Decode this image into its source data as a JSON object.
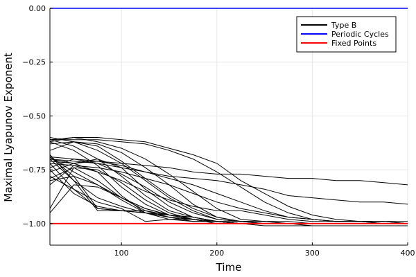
{
  "chart_data": {
    "type": "line",
    "title": "",
    "xlabel": "Time",
    "ylabel": "Maximal Lyapunov Exponent",
    "xlim": [
      25,
      400
    ],
    "ylim": [
      -1.1,
      0.0
    ],
    "x_ticks": [
      100,
      200,
      300,
      400
    ],
    "x_tick_labels": [
      "100",
      "200",
      "300",
      "400"
    ],
    "y_ticks": [
      0.0,
      -0.25,
      -0.5,
      -0.75,
      -1.0
    ],
    "y_tick_labels": [
      "0.00",
      "−0.25",
      "−0.50",
      "−0.75",
      "−1.00"
    ],
    "grid": true,
    "legend": {
      "position": "top-right",
      "entries": [
        {
          "label": "Type B",
          "color": "#000000"
        },
        {
          "label": "Periodic Cycles",
          "color": "#0000ff"
        },
        {
          "label": "Fixed Points",
          "color": "#ff0000"
        }
      ]
    },
    "x": [
      25,
      50,
      75,
      100,
      125,
      150,
      175,
      200,
      225,
      250,
      275,
      300,
      325,
      350,
      375,
      400
    ],
    "series": [
      {
        "name": "Type B",
        "color": "#000000",
        "trajectories": [
          [
            -0.61,
            -0.6,
            -0.6,
            -0.61,
            -0.62,
            -0.65,
            -0.68,
            -0.72,
            -0.8,
            -0.86,
            -0.92,
            -0.96,
            -0.98,
            -0.99,
            -0.99,
            -1.0
          ],
          [
            -0.61,
            -0.61,
            -0.61,
            -0.62,
            -0.63,
            -0.66,
            -0.7,
            -0.76,
            -0.83,
            -0.9,
            -0.95,
            -0.98,
            -0.99,
            -0.99,
            -1.0,
            -1.0
          ],
          [
            -0.62,
            -0.6,
            -0.62,
            -0.65,
            -0.7,
            -0.77,
            -0.85,
            -0.93,
            -0.98,
            -0.99,
            -0.99,
            -1.0,
            -1.0,
            -1.0,
            -1.0,
            -1.0
          ],
          [
            -0.6,
            -0.62,
            -0.63,
            -0.67,
            -0.74,
            -0.82,
            -0.91,
            -0.97,
            -0.99,
            -0.99,
            -1.0,
            -1.0,
            -1.0,
            -1.0,
            -1.0,
            -1.0
          ],
          [
            -0.63,
            -0.62,
            -0.66,
            -0.72,
            -0.8,
            -0.88,
            -0.94,
            -0.98,
            -0.99,
            -1.0,
            -1.0,
            -1.0,
            -1.0,
            -1.0,
            -1.0,
            -1.0
          ],
          [
            -0.66,
            -0.62,
            -0.64,
            -0.71,
            -0.79,
            -0.87,
            -0.93,
            -0.97,
            -0.99,
            -0.99,
            -1.0,
            -1.0,
            -1.0,
            -1.0,
            -1.0,
            -1.0
          ],
          [
            -0.61,
            -0.64,
            -0.7,
            -0.78,
            -0.87,
            -0.94,
            -0.97,
            -0.99,
            -1.0,
            -1.0,
            -1.0,
            -1.0,
            -1.0,
            -1.0,
            -1.0,
            -1.0
          ],
          [
            -0.62,
            -0.66,
            -0.73,
            -0.83,
            -0.91,
            -0.96,
            -0.98,
            -0.99,
            -1.0,
            -1.0,
            -1.0,
            -1.0,
            -1.0,
            -1.0,
            -1.0,
            -1.0
          ],
          [
            -0.69,
            -0.7,
            -0.71,
            -0.72,
            -0.73,
            -0.74,
            -0.76,
            -0.77,
            -0.77,
            -0.78,
            -0.79,
            -0.79,
            -0.8,
            -0.8,
            -0.81,
            -0.82
          ],
          [
            -0.7,
            -0.71,
            -0.72,
            -0.74,
            -0.76,
            -0.78,
            -0.79,
            -0.8,
            -0.82,
            -0.84,
            -0.87,
            -0.88,
            -0.89,
            -0.9,
            -0.9,
            -0.91
          ],
          [
            -0.71,
            -0.72,
            -0.71,
            -0.73,
            -0.76,
            -0.79,
            -0.82,
            -0.86,
            -0.9,
            -0.94,
            -0.97,
            -0.98,
            -0.99,
            -0.99,
            -1.0,
            -1.0
          ],
          [
            -0.72,
            -0.73,
            -0.74,
            -0.76,
            -0.79,
            -0.82,
            -0.86,
            -0.9,
            -0.93,
            -0.95,
            -0.97,
            -0.98,
            -0.99,
            -0.99,
            -0.99,
            -1.0
          ],
          [
            -0.7,
            -0.72,
            -0.76,
            -0.8,
            -0.85,
            -0.89,
            -0.92,
            -0.94,
            -0.94,
            -0.96,
            -0.98,
            -0.99,
            -0.99,
            -0.99,
            -0.99,
            -0.99
          ],
          [
            -0.74,
            -0.7,
            -0.72,
            -0.77,
            -0.83,
            -0.9,
            -0.95,
            -0.98,
            -0.99,
            -1.0,
            -1.0,
            -1.0,
            -1.0,
            -1.0,
            -1.0,
            -1.0
          ],
          [
            -0.76,
            -0.72,
            -0.7,
            -0.74,
            -0.84,
            -0.92,
            -0.97,
            -0.99,
            -1.0,
            -1.0,
            -1.0,
            -1.0,
            -1.0,
            -1.0,
            -1.0,
            -1.0
          ],
          [
            -0.79,
            -0.74,
            -0.75,
            -0.81,
            -0.89,
            -0.95,
            -0.98,
            -0.99,
            -1.0,
            -1.0,
            -1.0,
            -1.0,
            -1.0,
            -1.0,
            -1.0,
            -1.0
          ],
          [
            -0.69,
            -0.76,
            -0.82,
            -0.88,
            -0.93,
            -0.96,
            -0.98,
            -0.99,
            -1.0,
            -1.0,
            -1.0,
            -1.0,
            -1.0,
            -1.0,
            -1.0,
            -1.0
          ],
          [
            -0.8,
            -0.78,
            -0.82,
            -0.89,
            -0.95,
            -0.97,
            -0.98,
            -0.99,
            -1.0,
            -1.0,
            -1.0,
            -1.0,
            -1.0,
            -1.0,
            -1.0,
            -1.0
          ],
          [
            -0.82,
            -0.73,
            -0.76,
            -0.87,
            -0.95,
            -0.98,
            -0.99,
            -0.99,
            -1.0,
            -1.0,
            -1.0,
            -1.0,
            -1.0,
            -1.0,
            -1.0,
            -1.0
          ],
          [
            -0.93,
            -0.74,
            -0.8,
            -0.88,
            -0.94,
            -0.97,
            -0.99,
            -0.99,
            -1.0,
            -1.0,
            -1.0,
            -1.0,
            -1.0,
            -1.0,
            -1.0,
            -1.0
          ],
          [
            -0.69,
            -0.78,
            -0.93,
            -0.94,
            -0.94,
            -0.96,
            -0.97,
            -0.99,
            -1.0,
            -1.0,
            -1.0,
            -1.0,
            -1.0,
            -1.0,
            -1.0,
            -1.0
          ],
          [
            -0.7,
            -0.8,
            -0.94,
            -0.94,
            -0.95,
            -0.96,
            -0.98,
            -0.99,
            -1.0,
            -1.0,
            -1.0,
            -1.0,
            -1.0,
            -1.0,
            -1.0,
            -1.0
          ],
          [
            -0.72,
            -0.84,
            -0.93,
            -0.94,
            -0.95,
            -0.96,
            -0.97,
            -0.99,
            -0.99,
            -1.0,
            -1.0,
            -1.0,
            -1.0,
            -1.0,
            -1.0,
            -1.0
          ],
          [
            -0.75,
            -0.86,
            -0.92,
            -0.94,
            -0.95,
            -0.97,
            -0.98,
            -0.99,
            -1.0,
            -1.0,
            -1.0,
            -1.0,
            -1.0,
            -1.0,
            -1.0,
            -1.0
          ],
          [
            -0.78,
            -0.84,
            -0.9,
            -0.93,
            -0.99,
            -0.98,
            -0.98,
            -0.99,
            -1.0,
            -1.0,
            -1.0,
            -1.0,
            -1.0,
            -1.0,
            -1.0,
            -1.0
          ],
          [
            -0.95,
            -0.82,
            -0.83,
            -0.88,
            -0.93,
            -0.96,
            -0.98,
            -0.99,
            -1.0,
            -1.0,
            -1.0,
            -1.01,
            -1.01,
            -1.01,
            -1.01,
            -1.01
          ],
          [
            -0.68,
            -0.8,
            -0.88,
            -0.92,
            -0.95,
            -0.97,
            -0.98,
            -1.0,
            -1.0,
            -1.01,
            -1.01,
            -1.01,
            -1.01,
            -1.01,
            -1.01,
            -1.01
          ]
        ]
      },
      {
        "name": "Periodic Cycles",
        "color": "#0000ff",
        "values": [
          0.0,
          0.0,
          0.0,
          0.0,
          0.0,
          0.0,
          0.0,
          0.0,
          0.0,
          0.0,
          0.0,
          0.0,
          0.0,
          0.0,
          0.0,
          0.0
        ]
      },
      {
        "name": "Fixed Points",
        "color": "#ff0000",
        "values": [
          -1.0,
          -1.0,
          -1.0,
          -1.0,
          -1.0,
          -1.0,
          -1.0,
          -1.0,
          -1.0,
          -1.0,
          -1.0,
          -1.0,
          -1.0,
          -1.0,
          -1.0,
          -1.0
        ]
      }
    ]
  }
}
